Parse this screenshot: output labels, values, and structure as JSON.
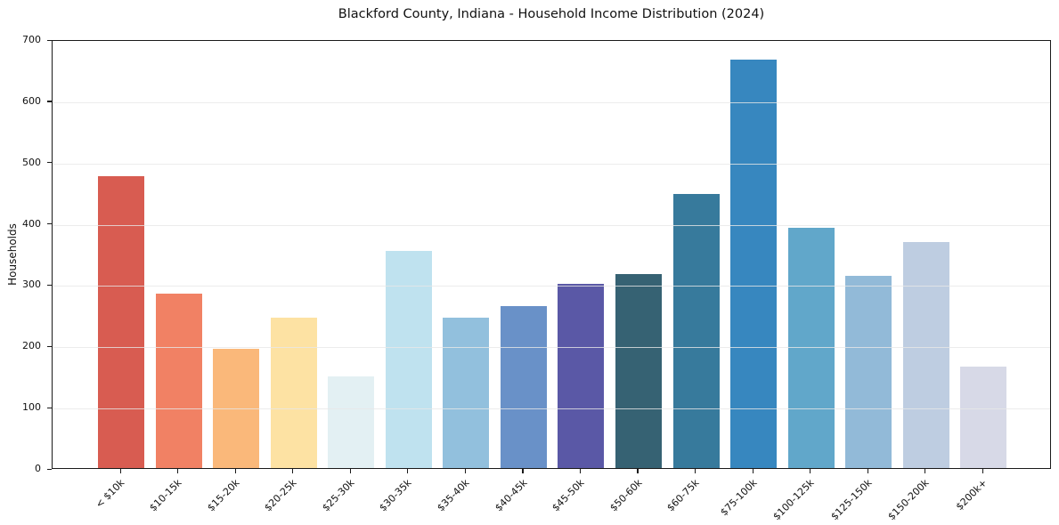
{
  "chart_data": {
    "type": "bar",
    "title": "Blackford County, Indiana - Household Income Distribution (2024)",
    "xlabel": "",
    "ylabel": "Households",
    "ylim": [
      0,
      700
    ],
    "yticks": [
      0,
      100,
      200,
      300,
      400,
      500,
      600,
      700
    ],
    "grid": "horizontal-light",
    "legend": false,
    "categories": [
      "< $10k",
      "$10-15k",
      "$15-20k",
      "$20-25k",
      "$25-30k",
      "$30-35k",
      "$35-40k",
      "$40-45k",
      "$45-50k",
      "$50-60k",
      "$60-75k",
      "$75-100k",
      "$100-125k",
      "$125-150k",
      "$150-200k",
      "$200k+"
    ],
    "values": [
      476,
      285,
      194,
      245,
      149,
      354,
      245,
      264,
      300,
      316,
      448,
      667,
      392,
      314,
      369,
      165
    ],
    "bar_colors": [
      "#d85c51",
      "#f18164",
      "#fab87a",
      "#fde2a3",
      "#e3f0f3",
      "#bfe2ef",
      "#92c0dd",
      "#6991c8",
      "#5a58a6",
      "#366273",
      "#377a9c",
      "#3787bf",
      "#61a7ca",
      "#92bad8",
      "#becde1",
      "#d7d9e7"
    ]
  }
}
